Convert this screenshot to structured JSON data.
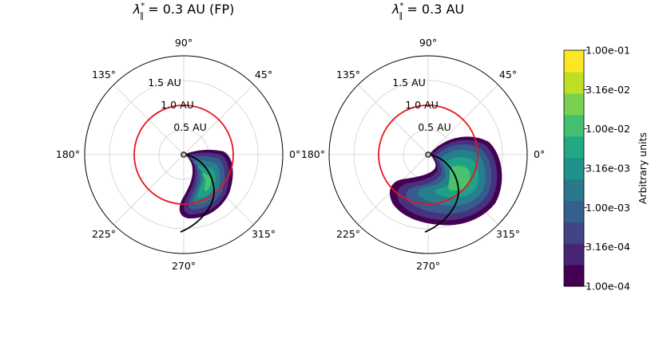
{
  "chart_data": [
    {
      "type": "polar-contour",
      "title_symbol": "λ",
      "title_sub": "∥",
      "title_sup": "*",
      "title_rest": " = 0.3 AU (FP)",
      "angle_ticks": [
        "0°",
        "45°",
        "90°",
        "135°",
        "180°",
        "225°",
        "270°",
        "315°"
      ],
      "radial_ticks": [
        "0.5 AU",
        "1.0 AU",
        "1.5 AU"
      ],
      "r_max": 2.0,
      "observer_circle_r_au": 1.0,
      "observer_circle_color": "#e8141c",
      "contour_extent_deg": [
        -110,
        25
      ],
      "contour_extent_r_au": [
        0.1,
        1.9
      ]
    },
    {
      "type": "polar-contour",
      "title_symbol": "λ",
      "title_sub": "∥",
      "title_sup": "*",
      "title_rest": " = 0.3 AU",
      "angle_ticks": [
        "0°",
        "45°",
        "90°",
        "135°",
        "180°",
        "225°",
        "270°",
        "315°"
      ],
      "radial_ticks": [
        "0.5 AU",
        "1.0 AU",
        "1.5 AU"
      ],
      "r_max": 2.0,
      "observer_circle_r_au": 1.0,
      "observer_circle_color": "#e8141c",
      "contour_extent_deg": [
        -140,
        25
      ],
      "contour_extent_r_au": [
        0.1,
        1.8
      ]
    }
  ],
  "colorbar": {
    "label": "Arbitrary units",
    "scale": "log",
    "range": [
      0.0001,
      0.1
    ],
    "tick_labels": [
      "1.00e-01",
      "3.16e-02",
      "1.00e-02",
      "3.16e-03",
      "1.00e-03",
      "3.16e-04",
      "1.00e-04"
    ],
    "levels": [
      "#440154",
      "#482475",
      "#414487",
      "#355f8d",
      "#2a788e",
      "#21918c",
      "#22a884",
      "#44bf70",
      "#7ad151",
      "#bddf26",
      "#fde725"
    ]
  }
}
